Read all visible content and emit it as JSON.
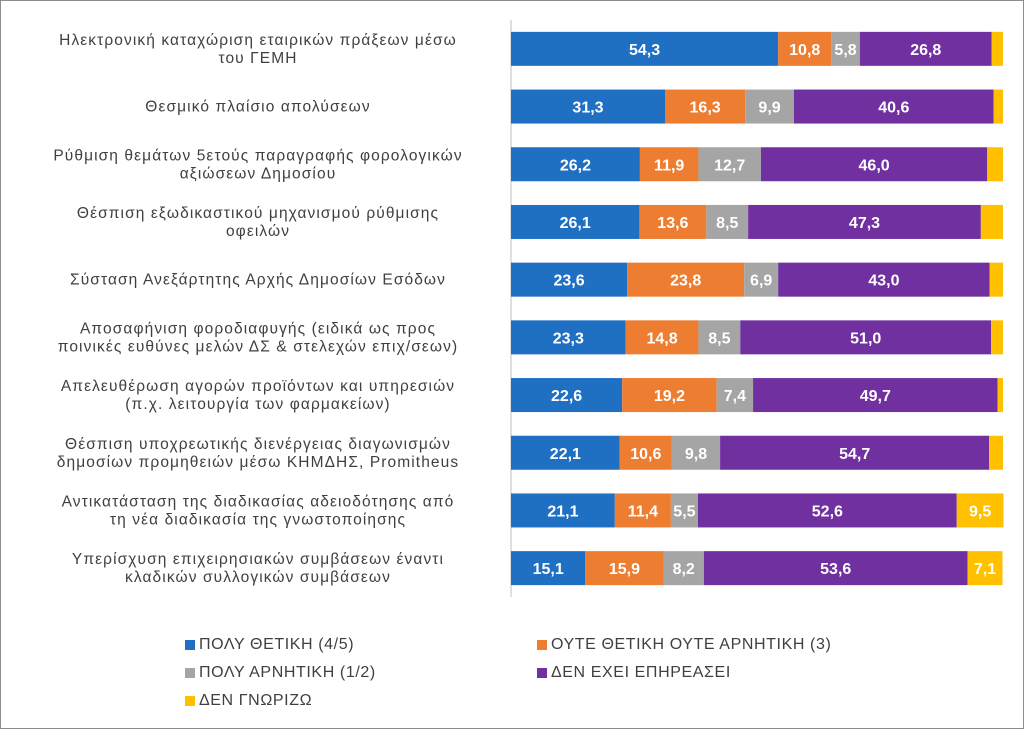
{
  "colors": {
    "very_positive": "#1F6FC3",
    "neutral": "#ED7D31",
    "very_negative": "#A5A5A5",
    "no_effect": "#7030A0",
    "dont_know": "#FFC000"
  },
  "chart_data": {
    "type": "bar",
    "orientation": "horizontal",
    "stacked": true,
    "title": "",
    "xlim": [
      0,
      100
    ],
    "legend_position": "bottom",
    "categories": [
      [
        "Ηλεκτρονική καταχώριση εταιρικών πράξεων μέσω",
        "του ΓΕΜΗ"
      ],
      [
        "Θεσμικό πλαίσιο απολύσεων"
      ],
      [
        "Ρύθμιση θεμάτων 5ετούς παραγραφής φορολογικών",
        "αξιώσεων Δημοσίου"
      ],
      [
        "Θέσπιση εξωδικαστικού μηχανισμού ρύθμισης",
        "οφειλών"
      ],
      [
        "Σύσταση Ανεξάρτητης Αρχής Δημοσίων Εσόδων"
      ],
      [
        "Αποσαφήνιση φοροδιαφυγής (ειδικά ως προς",
        "ποινικές ευθύνες μελών ΔΣ & στελεχών επιχ/σεων)"
      ],
      [
        "Απελευθέρωση αγορών προϊόντων και υπηρεσιών",
        "(π.χ. λειτουργία των φαρμακείων)"
      ],
      [
        "Θέσπιση υποχρεωτικής διενέργειας διαγωνισμών",
        "δημοσίων προμηθειών μέσω ΚΗΜΔΗΣ, Promitheus"
      ],
      [
        "Αντικατάσταση της διαδικασίας αδειοδότησης από",
        "τη νέα διαδικασία της γνωστοποίησης"
      ],
      [
        "Υπερίσχυση επιχειρησιακών συμβάσεων έναντι",
        "κλαδικών συλλογικών συμβάσεων"
      ]
    ],
    "series": [
      {
        "name": "ΠΟΛΥ ΘΕΤΙΚΗ (4/5)",
        "color_key": "very_positive",
        "values": [
          54.3,
          31.3,
          26.2,
          26.1,
          23.6,
          23.3,
          22.6,
          22.1,
          21.1,
          15.1
        ],
        "labels": [
          "54,3",
          "31,3",
          "26,2",
          "26,1",
          "23,6",
          "23,3",
          "22,6",
          "22,1",
          "21,1",
          "15,1"
        ]
      },
      {
        "name": "ΟΥΤΕ ΘΕΤΙΚΗ ΟΥΤΕ ΑΡΝΗΤΙΚΗ  (3)",
        "color_key": "neutral",
        "values": [
          10.8,
          16.3,
          11.9,
          13.6,
          23.8,
          14.8,
          19.2,
          10.6,
          11.4,
          15.9
        ],
        "labels": [
          "10,8",
          "16,3",
          "11,9",
          "13,6",
          "23,8",
          "14,8",
          "19,2",
          "10,6",
          "11,4",
          "15,9"
        ]
      },
      {
        "name": "ΠΟΛΥ ΑΡΝΗΤΙΚΗ  (1/2)",
        "color_key": "very_negative",
        "values": [
          5.8,
          9.9,
          12.7,
          8.5,
          6.9,
          8.5,
          7.4,
          9.8,
          5.5,
          8.2
        ],
        "labels": [
          "5,8",
          "9,9",
          "12,7",
          "8,5",
          "6,9",
          "8,5",
          "7,4",
          "9,8",
          "5,5",
          "8,2"
        ]
      },
      {
        "name": "ΔΕΝ ΕΧΕΙ ΕΠΗΡΕΑΣΕΙ",
        "color_key": "no_effect",
        "values": [
          26.8,
          40.6,
          46.0,
          47.3,
          43.0,
          51.0,
          49.7,
          54.7,
          52.6,
          53.6
        ],
        "labels": [
          "26,8",
          "40,6",
          "46,0",
          "47,3",
          "43,0",
          "51,0",
          "49,7",
          "54,7",
          "52,6",
          "53,6"
        ]
      },
      {
        "name": "ΔΕΝ ΓΝΩΡΙΖΩ",
        "color_key": "dont_know",
        "values": [
          2.3,
          1.9,
          3.2,
          4.5,
          2.7,
          2.4,
          1.1,
          2.8,
          9.5,
          7.1
        ],
        "labels": [
          "",
          "",
          "",
          "",
          "",
          "",
          "",
          "",
          "9,5",
          "7,1"
        ]
      }
    ]
  }
}
